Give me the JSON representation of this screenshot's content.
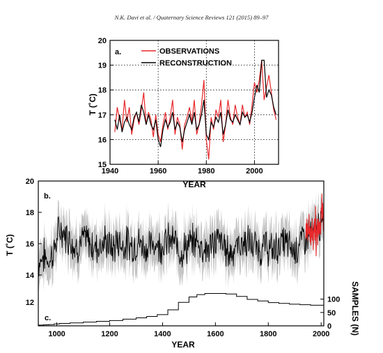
{
  "header": {
    "citation": "N.K. Davi et al. / Quaternary Science Reviews 121 (2015) 89–97"
  },
  "colors": {
    "observations": "#e8282b",
    "reconstruction": "#000000",
    "uncertainty": "#c4c4c4"
  },
  "chart_data": [
    {
      "type": "line",
      "panel_label": "a.",
      "xlabel": "YEAR",
      "ylabel": "T (˚C)",
      "xlim": [
        1940,
        2010
      ],
      "ylim": [
        15,
        20
      ],
      "xticks": [
        "1940",
        "1960",
        "1980",
        "2000"
      ],
      "yticks": [
        "15",
        "16",
        "17",
        "18",
        "19",
        "20"
      ],
      "grid": "dotted",
      "legend": "top-left",
      "series": [
        {
          "name": "OBSERVATIONS",
          "x": [
            1942,
            1943,
            1944,
            1945,
            1946,
            1947,
            1948,
            1949,
            1950,
            1951,
            1952,
            1953,
            1954,
            1955,
            1956,
            1957,
            1958,
            1959,
            1960,
            1961,
            1962,
            1963,
            1964,
            1965,
            1966,
            1967,
            1968,
            1969,
            1970,
            1971,
            1972,
            1973,
            1974,
            1975,
            1976,
            1977,
            1978,
            1979,
            1980,
            1981,
            1982,
            1983,
            1984,
            1985,
            1986,
            1987,
            1988,
            1989,
            1990,
            1991,
            1992,
            1993,
            1994,
            1995,
            1996,
            1997,
            1998,
            1999,
            2000,
            2001,
            2002,
            2003,
            2004,
            2005,
            2006,
            2007,
            2008,
            2009
          ],
          "y": [
            16.3,
            17.3,
            16.8,
            16.4,
            17.6,
            16.7,
            17.3,
            16.2,
            16.8,
            17.1,
            16.6,
            17.2,
            17.9,
            16.6,
            17.1,
            16.8,
            16.1,
            17.0,
            16.2,
            15.9,
            16.6,
            17.1,
            16.4,
            16.9,
            17.6,
            16.2,
            16.9,
            16.6,
            15.6,
            16.6,
            16.9,
            17.3,
            16.7,
            17.6,
            16.2,
            16.6,
            17.4,
            18.4,
            16.0,
            15.2,
            16.9,
            16.4,
            17.2,
            16.9,
            17.6,
            15.9,
            16.6,
            17.6,
            16.9,
            16.6,
            17.4,
            16.9,
            16.6,
            17.4,
            16.9,
            17.1,
            16.6,
            17.4,
            18.3,
            17.9,
            18.4,
            19.2,
            17.6,
            18.1,
            18.6,
            17.9,
            17.2,
            16.8
          ]
        },
        {
          "name": "RECONSTRUCTION",
          "x": [
            1942,
            1943,
            1944,
            1945,
            1946,
            1947,
            1948,
            1949,
            1950,
            1951,
            1952,
            1953,
            1954,
            1955,
            1956,
            1957,
            1958,
            1959,
            1960,
            1961,
            1962,
            1963,
            1964,
            1965,
            1966,
            1967,
            1968,
            1969,
            1970,
            1971,
            1972,
            1973,
            1974,
            1975,
            1976,
            1977,
            1978,
            1979,
            1980,
            1981,
            1982,
            1983,
            1984,
            1985,
            1986,
            1987,
            1988,
            1989,
            1990,
            1991,
            1992,
            1993,
            1994,
            1995,
            1996,
            1997,
            1998,
            1999,
            2000,
            2001,
            2002,
            2003,
            2004,
            2005,
            2006,
            2007,
            2008,
            2009
          ],
          "y": [
            16.8,
            16.4,
            17.0,
            16.3,
            16.7,
            16.9,
            16.6,
            16.4,
            16.9,
            17.1,
            16.7,
            17.4,
            17.1,
            16.6,
            17.0,
            16.6,
            16.4,
            16.8,
            16.0,
            15.7,
            16.4,
            16.8,
            16.5,
            16.7,
            17.1,
            16.4,
            16.7,
            16.5,
            15.9,
            16.4,
            16.7,
            17.0,
            16.6,
            17.1,
            16.4,
            16.6,
            17.0,
            17.6,
            16.2,
            16.0,
            16.7,
            16.5,
            16.9,
            16.7,
            17.1,
            16.2,
            16.6,
            17.2,
            16.8,
            16.7,
            17.0,
            16.8,
            16.6,
            17.1,
            16.9,
            17.0,
            16.7,
            17.1,
            17.7,
            18.2,
            17.9,
            19.2,
            19.2,
            17.7,
            18.0,
            17.8,
            17.3,
            17.0
          ]
        }
      ]
    },
    {
      "type": "line",
      "panel_label": "b.",
      "xlabel": "YEAR",
      "ylabel": "T (˚C)",
      "xlim": [
        930,
        2010
      ],
      "ylim": [
        12,
        20
      ],
      "yticks": [
        "14",
        "16",
        "18",
        "20"
      ],
      "description": "Annual temperature reconstruction with grey uncertainty envelope and red instrumental observations 1942–2009",
      "series": [
        {
          "name": "RECONSTRUCTION",
          "x": [
            930,
            950,
            970,
            990,
            1010,
            1030,
            1050,
            1070,
            1090,
            1110,
            1130,
            1150,
            1170,
            1190,
            1210,
            1230,
            1250,
            1270,
            1290,
            1310,
            1330,
            1350,
            1370,
            1390,
            1410,
            1430,
            1450,
            1470,
            1490,
            1510,
            1530,
            1550,
            1570,
            1590,
            1610,
            1630,
            1650,
            1670,
            1690,
            1710,
            1730,
            1750,
            1770,
            1790,
            1810,
            1830,
            1850,
            1870,
            1890,
            1910,
            1930,
            1950,
            1970,
            1990,
            2009
          ],
          "y": [
            14.8,
            15.2,
            14.9,
            15.6,
            16.9,
            16.6,
            16.4,
            15.7,
            16.1,
            16.3,
            15.9,
            15.8,
            16.0,
            16.1,
            15.6,
            16.2,
            15.9,
            16.0,
            15.9,
            16.1,
            15.8,
            15.7,
            16.1,
            15.9,
            16.1,
            16.2,
            16.0,
            15.5,
            15.8,
            16.0,
            16.2,
            15.8,
            15.6,
            16.0,
            16.3,
            15.9,
            15.4,
            15.7,
            15.9,
            16.1,
            16.0,
            15.8,
            15.6,
            15.9,
            15.5,
            15.7,
            16.1,
            16.0,
            15.6,
            15.8,
            16.3,
            16.6,
            16.7,
            17.2,
            16.9
          ]
        },
        {
          "name": "OBSERVATIONS",
          "x": [
            1942,
            1950,
            1958,
            1966,
            1974,
            1982,
            1990,
            1998,
            2003,
            2009
          ],
          "y": [
            16.3,
            16.8,
            16.1,
            17.6,
            16.7,
            16.9,
            16.9,
            16.6,
            19.2,
            16.8
          ]
        }
      ]
    },
    {
      "type": "line",
      "panel_label": "c.",
      "xlabel": "YEAR",
      "ylabel": "SAMPLES (N)",
      "xlim": [
        930,
        2010
      ],
      "ylim": [
        0,
        125
      ],
      "xticks": [
        "1000",
        "1200",
        "1400",
        "1600",
        "1800",
        "2000"
      ],
      "yticks": [
        "0",
        "50",
        "100"
      ],
      "left_tick": "12",
      "series": [
        {
          "name": "SAMPLES",
          "x": [
            930,
            950,
            970,
            990,
            1010,
            1050,
            1100,
            1150,
            1200,
            1250,
            1300,
            1340,
            1380,
            1420,
            1460,
            1500,
            1530,
            1560,
            1600,
            1640,
            1680,
            1720,
            1760,
            1800,
            1840,
            1880,
            1920,
            1960,
            2009
          ],
          "y": [
            3,
            4,
            5,
            7,
            9,
            11,
            14,
            17,
            20,
            25,
            30,
            35,
            42,
            60,
            88,
            108,
            117,
            121,
            121,
            119,
            110,
            99,
            93,
            87,
            84,
            81,
            79,
            77,
            77
          ]
        }
      ]
    }
  ]
}
